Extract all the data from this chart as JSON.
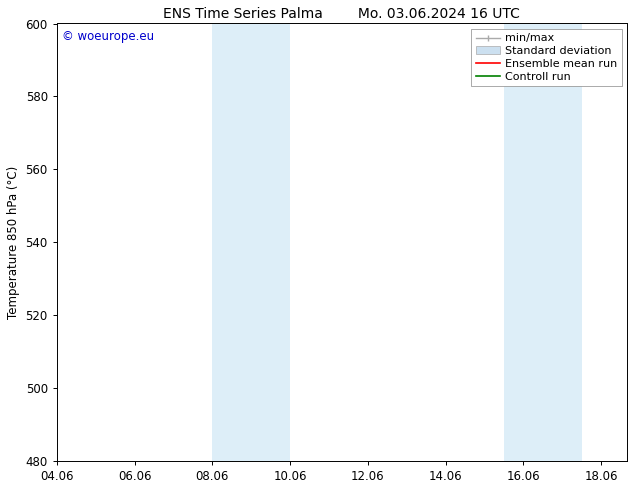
{
  "title_left": "ENS Time Series Palma",
  "title_right": "Mo. 03.06.2024 16 UTC",
  "ylabel": "Temperature 850 hPa (°C)",
  "ylim": [
    480,
    600
  ],
  "yticks": [
    480,
    500,
    520,
    540,
    560,
    580,
    600
  ],
  "xtick_labels": [
    "04.06",
    "06.06",
    "08.06",
    "10.06",
    "12.06",
    "14.06",
    "16.06",
    "18.06"
  ],
  "xtick_positions": [
    4,
    6,
    8,
    10,
    12,
    14,
    16,
    18
  ],
  "xlim": [
    4.0,
    18.667
  ],
  "shaded_bands": [
    {
      "xmin": 8.0,
      "xmax": 10.0,
      "color": "#ddeef8"
    },
    {
      "xmin": 15.5,
      "xmax": 17.5,
      "color": "#ddeef8"
    }
  ],
  "watermark_text": "© woeurope.eu",
  "watermark_color": "#0000cc",
  "background_color": "#ffffff",
  "font_size": 8.5,
  "title_font_size": 10,
  "legend_minmax_color": "#aaaaaa",
  "legend_std_color": "#cce0f0",
  "legend_ens_color": "red",
  "legend_ctrl_color": "green"
}
